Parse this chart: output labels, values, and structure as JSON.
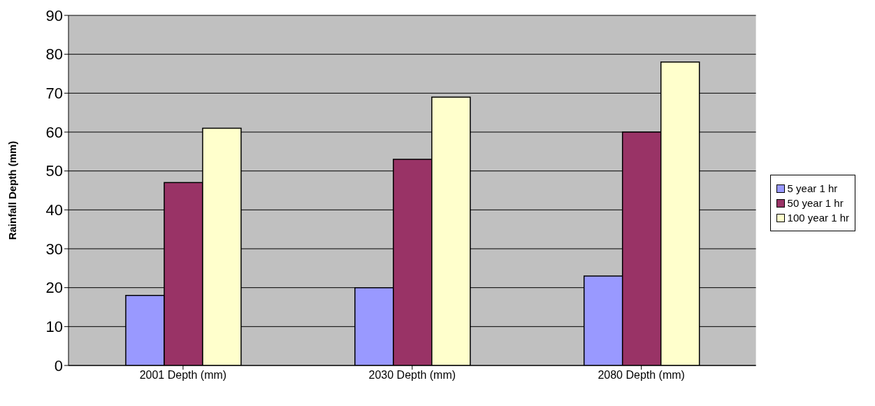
{
  "chart_data": {
    "type": "bar",
    "ylabel": "Rainfall Depth (mm)",
    "categories": [
      "2001 Depth (mm)",
      "2030 Depth (mm)",
      "2080 Depth (mm)"
    ],
    "series": [
      {
        "name": "5 year 1 hr",
        "color": "#9999ff",
        "values": [
          18,
          20,
          23
        ]
      },
      {
        "name": "50 year 1 hr",
        "color": "#993366",
        "values": [
          47,
          53,
          60
        ]
      },
      {
        "name": "100 year 1 hr",
        "color": "#ffffcc",
        "values": [
          61,
          69,
          78
        ]
      }
    ],
    "ylim": [
      0,
      90
    ],
    "yticks": [
      0,
      10,
      20,
      30,
      40,
      50,
      60,
      70,
      80,
      90
    ],
    "grid": "y",
    "legend": "right"
  }
}
